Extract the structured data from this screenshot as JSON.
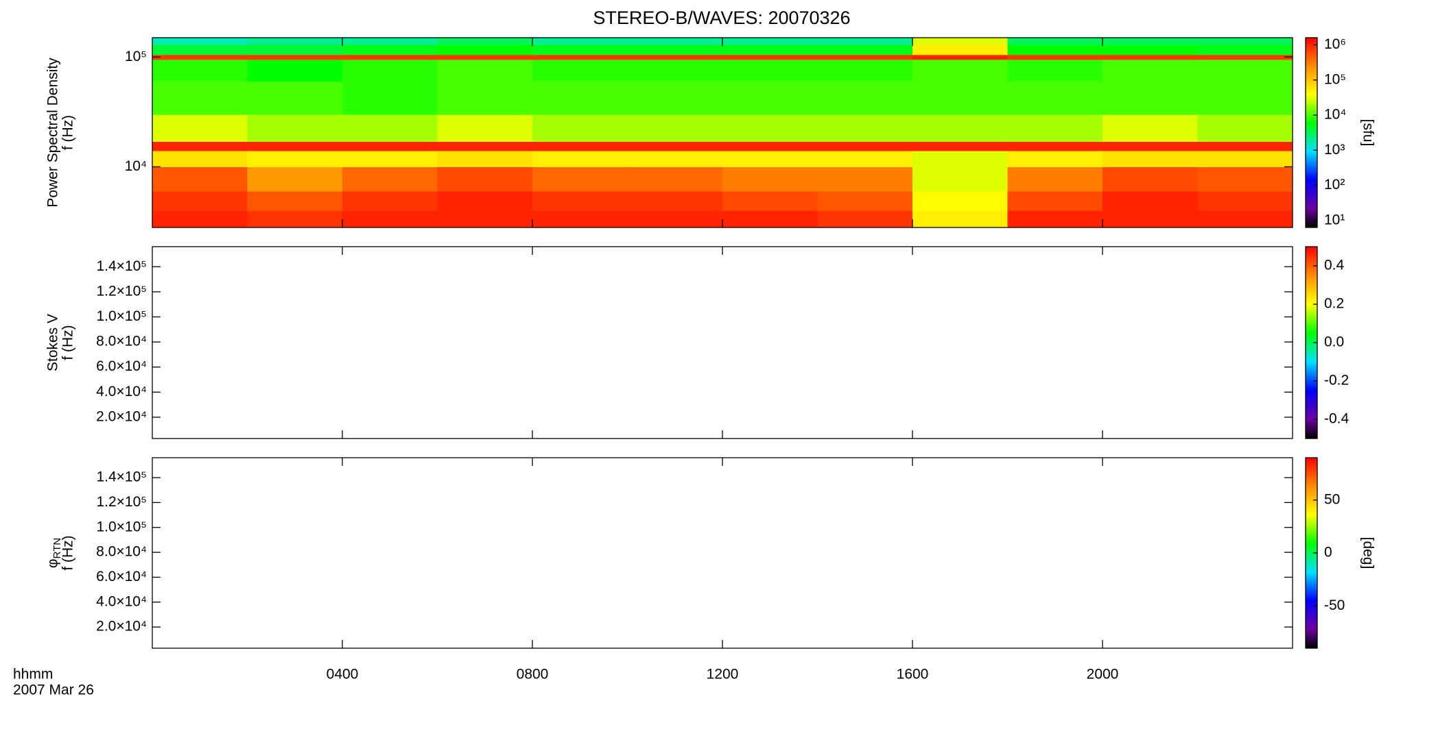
{
  "chart_data": [
    {
      "type": "heatmap",
      "title": "STEREO-B/WAVES: 20070326",
      "ylabel": [
        "Power Spectral Density",
        "f (Hz)"
      ],
      "xlim": [
        0,
        24
      ],
      "ylim": [
        2800,
        150000
      ],
      "ylog": true,
      "yticks": [
        {
          "value": 10000,
          "label": "10⁴"
        },
        {
          "value": 100000,
          "label": "10⁵"
        }
      ],
      "x_edges": [
        0,
        2,
        4,
        6,
        8,
        10,
        12,
        14,
        16,
        18,
        20,
        22,
        24
      ],
      "y_edges": [
        2800,
        4000,
        6000,
        10000,
        14000,
        17000,
        30000,
        60000,
        95000,
        105000,
        130000,
        150000
      ],
      "z": [
        [
          1000000,
          800000,
          1000000,
          1000000,
          1000000,
          1000000,
          1000000,
          800000,
          50000,
          1000000,
          1000000,
          1000000
        ],
        [
          800000,
          500000,
          800000,
          1000000,
          800000,
          800000,
          600000,
          500000,
          40000,
          600000,
          1000000,
          800000
        ],
        [
          500000,
          200000,
          400000,
          600000,
          400000,
          400000,
          300000,
          300000,
          30000,
          300000,
          600000,
          500000
        ],
        [
          60000,
          50000,
          50000,
          60000,
          50000,
          50000,
          50000,
          50000,
          30000,
          50000,
          60000,
          60000
        ],
        [
          1000000,
          1000000,
          1000000,
          1000000,
          1000000,
          1000000,
          1000000,
          1000000,
          1000000,
          1000000,
          1000000,
          1000000
        ],
        [
          30000,
          20000,
          20000,
          30000,
          20000,
          20000,
          20000,
          20000,
          20000,
          20000,
          30000,
          20000
        ],
        [
          10000,
          10000,
          8000,
          10000,
          10000,
          10000,
          10000,
          10000,
          10000,
          10000,
          10000,
          10000
        ],
        [
          8000,
          6000,
          8000,
          10000,
          8000,
          8000,
          8000,
          8000,
          10000,
          8000,
          10000,
          10000
        ],
        [
          800000,
          800000,
          800000,
          800000,
          800000,
          800000,
          800000,
          800000,
          1000000,
          800000,
          800000,
          800000
        ],
        [
          4000,
          4000,
          5000,
          6000,
          5000,
          5000,
          5000,
          5000,
          50000,
          6000,
          6000,
          5000
        ],
        [
          1500,
          2000,
          2000,
          3000,
          2000,
          2000,
          2000,
          2000,
          30000,
          3000,
          3000,
          3000
        ]
      ],
      "colormap": "rainbow",
      "zlim": [
        6.3,
        1600000
      ],
      "zlog": true,
      "zticks": [
        {
          "value": 10,
          "label": "10¹"
        },
        {
          "value": 100,
          "label": "10²"
        },
        {
          "value": 1000,
          "label": "10³"
        },
        {
          "value": 10000,
          "label": "10⁴"
        },
        {
          "value": 100000,
          "label": "10⁵"
        },
        {
          "value": 1000000,
          "label": "10⁶"
        }
      ],
      "zlabel": "[sfu]"
    },
    {
      "type": "heatmap",
      "ylabel": [
        "Stokes V",
        "f (Hz)"
      ],
      "xlim": [
        0,
        24
      ],
      "ylim": [
        3000,
        156000
      ],
      "ylog": false,
      "yticks": [
        {
          "value": 20000,
          "label": "2.0×10⁴"
        },
        {
          "value": 40000,
          "label": "4.0×10⁴"
        },
        {
          "value": 60000,
          "label": "6.0×10⁴"
        },
        {
          "value": 80000,
          "label": "8.0×10⁴"
        },
        {
          "value": 100000,
          "label": "1.0×10⁵"
        },
        {
          "value": 120000,
          "label": "1.2×10⁵"
        },
        {
          "value": 140000,
          "label": "1.4×10⁵"
        }
      ],
      "colormap": "rainbow",
      "zlim": [
        -0.5,
        0.5
      ],
      "zlog": false,
      "zticks": [
        -0.4,
        -0.2,
        {
          "value": 0,
          "label": "0.0"
        },
        0.2,
        0.4
      ]
    },
    {
      "type": "heatmap",
      "ylabel": [
        "φ",
        "f (Hz)"
      ],
      "ylabel_sub": "RTN",
      "xlim": [
        0,
        24
      ],
      "ylim": [
        3000,
        156000
      ],
      "ylog": false,
      "yticks": [
        {
          "value": 20000,
          "label": "2.0×10⁴"
        },
        {
          "value": 40000,
          "label": "4.0×10⁴"
        },
        {
          "value": 60000,
          "label": "6.0×10⁴"
        },
        {
          "value": 80000,
          "label": "8.0×10⁴"
        },
        {
          "value": 100000,
          "label": "1.0×10⁵"
        },
        {
          "value": 120000,
          "label": "1.2×10⁵"
        },
        {
          "value": 140000,
          "label": "1.4×10⁵"
        }
      ],
      "colormap": "rainbow",
      "zlim": [
        -90,
        90
      ],
      "zlog": false,
      "zticks": [
        -50,
        0,
        50
      ],
      "zlabel": "[deg]",
      "xticks": [
        {
          "value": 4,
          "label": "0400"
        },
        {
          "value": 8,
          "label": "0800"
        },
        {
          "value": 12,
          "label": "1200"
        },
        {
          "value": 16,
          "label": "1600"
        },
        {
          "value": 20,
          "label": "2000"
        }
      ],
      "xlabel": "hhmm",
      "date": "2007 Mar 26"
    }
  ]
}
